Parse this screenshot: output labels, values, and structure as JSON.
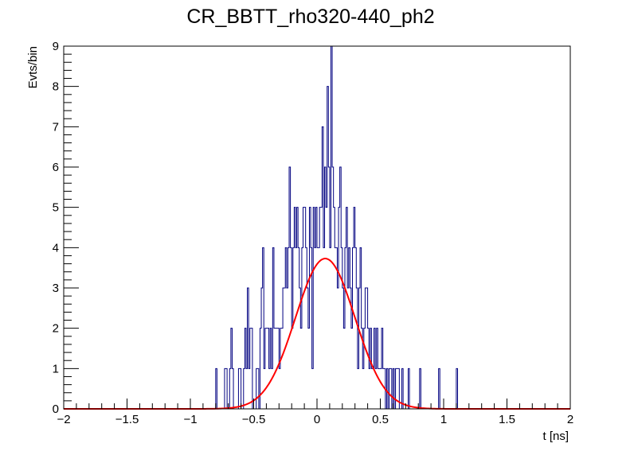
{
  "chart_data": {
    "type": "histogram",
    "title": "CR_BBTT_rho320-440_ph2",
    "xlabel": "t [ns]",
    "ylabel": "Evts/bin",
    "xlim": [
      -2,
      2
    ],
    "ylim": [
      0,
      9
    ],
    "grid": false,
    "x_tick_labels": [
      "−2",
      "−1.5",
      "−1",
      "−0.5",
      "0",
      "0.5",
      "1",
      "1.5",
      "2"
    ],
    "y_tick_labels": [
      "0",
      "1",
      "2",
      "3",
      "4",
      "5",
      "6",
      "7",
      "8",
      "9"
    ],
    "x_ticks": [
      -2,
      -1.5,
      -1,
      -0.5,
      0,
      0.5,
      1,
      1.5,
      2
    ],
    "y_ticks": [
      0,
      1,
      2,
      3,
      4,
      5,
      6,
      7,
      8,
      9
    ],
    "histogram": {
      "bin_width": 0.01,
      "colors": {
        "line": "#000080"
      },
      "bins": [
        {
          "x": -0.8,
          "y": 1
        },
        {
          "x": -0.73,
          "y": 1
        },
        {
          "x": -0.72,
          "y": 1
        },
        {
          "x": -0.69,
          "y": 1
        },
        {
          "x": -0.68,
          "y": 2
        },
        {
          "x": -0.67,
          "y": 1
        },
        {
          "x": -0.62,
          "y": 1
        },
        {
          "x": -0.61,
          "y": 1
        },
        {
          "x": -0.58,
          "y": 1
        },
        {
          "x": -0.57,
          "y": 2
        },
        {
          "x": -0.56,
          "y": 1
        },
        {
          "x": -0.55,
          "y": 3
        },
        {
          "x": -0.54,
          "y": 1
        },
        {
          "x": -0.53,
          "y": 2
        },
        {
          "x": -0.52,
          "y": 2
        },
        {
          "x": -0.48,
          "y": 1
        },
        {
          "x": -0.47,
          "y": 1
        },
        {
          "x": -0.45,
          "y": 2
        },
        {
          "x": -0.44,
          "y": 3
        },
        {
          "x": -0.43,
          "y": 4
        },
        {
          "x": -0.42,
          "y": 1
        },
        {
          "x": -0.41,
          "y": 2
        },
        {
          "x": -0.4,
          "y": 2
        },
        {
          "x": -0.39,
          "y": 2
        },
        {
          "x": -0.38,
          "y": 1
        },
        {
          "x": -0.37,
          "y": 2
        },
        {
          "x": -0.36,
          "y": 1
        },
        {
          "x": -0.35,
          "y": 4
        },
        {
          "x": -0.34,
          "y": 2
        },
        {
          "x": -0.33,
          "y": 2
        },
        {
          "x": -0.32,
          "y": 2
        },
        {
          "x": -0.31,
          "y": 2
        },
        {
          "x": -0.3,
          "y": 1
        },
        {
          "x": -0.29,
          "y": 2
        },
        {
          "x": -0.28,
          "y": 2
        },
        {
          "x": -0.27,
          "y": 3
        },
        {
          "x": -0.26,
          "y": 3
        },
        {
          "x": -0.25,
          "y": 4
        },
        {
          "x": -0.24,
          "y": 3
        },
        {
          "x": -0.23,
          "y": 4
        },
        {
          "x": -0.22,
          "y": 6
        },
        {
          "x": -0.21,
          "y": 4
        },
        {
          "x": -0.2,
          "y": 2
        },
        {
          "x": -0.19,
          "y": 4
        },
        {
          "x": -0.18,
          "y": 5
        },
        {
          "x": -0.17,
          "y": 4
        },
        {
          "x": -0.16,
          "y": 5
        },
        {
          "x": -0.15,
          "y": 4
        },
        {
          "x": -0.14,
          "y": 3
        },
        {
          "x": -0.13,
          "y": 2
        },
        {
          "x": -0.12,
          "y": 4
        },
        {
          "x": -0.11,
          "y": 5
        },
        {
          "x": -0.1,
          "y": 5
        },
        {
          "x": -0.09,
          "y": 4
        },
        {
          "x": -0.08,
          "y": 3
        },
        {
          "x": -0.07,
          "y": 2
        },
        {
          "x": -0.06,
          "y": 5
        },
        {
          "x": -0.05,
          "y": 4
        },
        {
          "x": -0.04,
          "y": 1
        },
        {
          "x": -0.03,
          "y": 5
        },
        {
          "x": -0.02,
          "y": 4
        },
        {
          "x": -0.01,
          "y": 5
        },
        {
          "x": 0.0,
          "y": 4
        },
        {
          "x": 0.01,
          "y": 4
        },
        {
          "x": 0.02,
          "y": 5
        },
        {
          "x": 0.03,
          "y": 5
        },
        {
          "x": 0.04,
          "y": 7
        },
        {
          "x": 0.05,
          "y": 4
        },
        {
          "x": 0.06,
          "y": 6
        },
        {
          "x": 0.07,
          "y": 5
        },
        {
          "x": 0.08,
          "y": 8
        },
        {
          "x": 0.09,
          "y": 6
        },
        {
          "x": 0.1,
          "y": 4
        },
        {
          "x": 0.11,
          "y": 9
        },
        {
          "x": 0.12,
          "y": 6
        },
        {
          "x": 0.13,
          "y": 5
        },
        {
          "x": 0.14,
          "y": 4
        },
        {
          "x": 0.15,
          "y": 4
        },
        {
          "x": 0.16,
          "y": 3
        },
        {
          "x": 0.17,
          "y": 5
        },
        {
          "x": 0.18,
          "y": 6
        },
        {
          "x": 0.19,
          "y": 4
        },
        {
          "x": 0.2,
          "y": 3
        },
        {
          "x": 0.21,
          "y": 2
        },
        {
          "x": 0.22,
          "y": 4
        },
        {
          "x": 0.23,
          "y": 5
        },
        {
          "x": 0.24,
          "y": 3
        },
        {
          "x": 0.25,
          "y": 4
        },
        {
          "x": 0.26,
          "y": 3
        },
        {
          "x": 0.27,
          "y": 2
        },
        {
          "x": 0.28,
          "y": 4
        },
        {
          "x": 0.29,
          "y": 5
        },
        {
          "x": 0.3,
          "y": 4
        },
        {
          "x": 0.31,
          "y": 3
        },
        {
          "x": 0.32,
          "y": 1
        },
        {
          "x": 0.33,
          "y": 3
        },
        {
          "x": 0.34,
          "y": 4
        },
        {
          "x": 0.35,
          "y": 2
        },
        {
          "x": 0.36,
          "y": 1
        },
        {
          "x": 0.37,
          "y": 2
        },
        {
          "x": 0.38,
          "y": 3
        },
        {
          "x": 0.39,
          "y": 3
        },
        {
          "x": 0.4,
          "y": 2
        },
        {
          "x": 0.41,
          "y": 1
        },
        {
          "x": 0.42,
          "y": 2
        },
        {
          "x": 0.43,
          "y": 1
        },
        {
          "x": 0.44,
          "y": 1
        },
        {
          "x": 0.45,
          "y": 2
        },
        {
          "x": 0.46,
          "y": 1
        },
        {
          "x": 0.47,
          "y": 2
        },
        {
          "x": 0.48,
          "y": 1
        },
        {
          "x": 0.49,
          "y": 1
        },
        {
          "x": 0.5,
          "y": 1
        },
        {
          "x": 0.51,
          "y": 2
        },
        {
          "x": 0.52,
          "y": 1
        },
        {
          "x": 0.53,
          "y": 1
        },
        {
          "x": 0.55,
          "y": 1
        },
        {
          "x": 0.57,
          "y": 1
        },
        {
          "x": 0.58,
          "y": 1
        },
        {
          "x": 0.6,
          "y": 1
        },
        {
          "x": 0.62,
          "y": 1
        },
        {
          "x": 0.63,
          "y": 1
        },
        {
          "x": 0.64,
          "y": 1
        },
        {
          "x": 0.67,
          "y": 1
        },
        {
          "x": 0.72,
          "y": 1
        },
        {
          "x": 0.81,
          "y": 1
        },
        {
          "x": 0.96,
          "y": 1
        },
        {
          "x": 1.1,
          "y": 1
        }
      ]
    },
    "fit": {
      "function": "gaus",
      "constant": 3.73,
      "mean": 0.065,
      "sigma": 0.235,
      "x_range": [
        -2,
        2
      ],
      "colors": {
        "line": "#ff0000"
      }
    }
  }
}
